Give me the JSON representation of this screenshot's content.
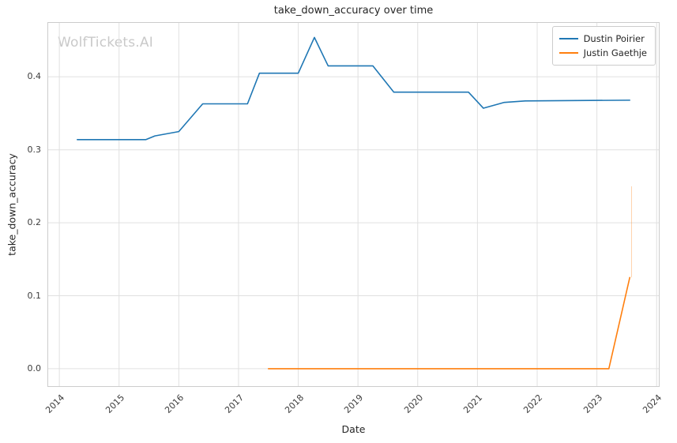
{
  "watermark": "WolfTickets.AI",
  "chart_data": {
    "type": "line",
    "title": "take_down_accuracy over time",
    "xlabel": "Date",
    "ylabel": "take_down_accuracy",
    "xlim": [
      2013.8,
      2024.05
    ],
    "ylim": [
      -0.025,
      0.475
    ],
    "x_ticks": [
      2014,
      2015,
      2016,
      2017,
      2018,
      2019,
      2020,
      2021,
      2022,
      2023,
      2024
    ],
    "y_ticks": [
      0.0,
      0.1,
      0.2,
      0.3,
      0.4
    ],
    "grid": true,
    "grid_color": "#e0e0e0",
    "spine_color": "#cccccc",
    "legend_position": "top-right",
    "series": [
      {
        "name": "Dustin Poirier",
        "color": "#1f77b4",
        "points": [
          [
            2014.3,
            0.314
          ],
          [
            2015.45,
            0.314
          ],
          [
            2015.6,
            0.319
          ],
          [
            2016.0,
            0.325
          ],
          [
            2016.4,
            0.363
          ],
          [
            2017.15,
            0.363
          ],
          [
            2017.35,
            0.405
          ],
          [
            2018.0,
            0.405
          ],
          [
            2018.27,
            0.454
          ],
          [
            2018.5,
            0.415
          ],
          [
            2019.25,
            0.415
          ],
          [
            2019.6,
            0.379
          ],
          [
            2020.85,
            0.379
          ],
          [
            2021.1,
            0.357
          ],
          [
            2021.45,
            0.365
          ],
          [
            2021.8,
            0.367
          ],
          [
            2023.55,
            0.368
          ]
        ]
      },
      {
        "name": "Justin Gaethje",
        "color": "#ff7f0e",
        "points": [
          [
            2017.5,
            0.0
          ],
          [
            2023.2,
            0.0
          ],
          [
            2023.55,
            0.125
          ]
        ],
        "faint_segment": [
          [
            2023.58,
            0.125
          ],
          [
            2023.58,
            0.25
          ]
        ]
      }
    ]
  }
}
